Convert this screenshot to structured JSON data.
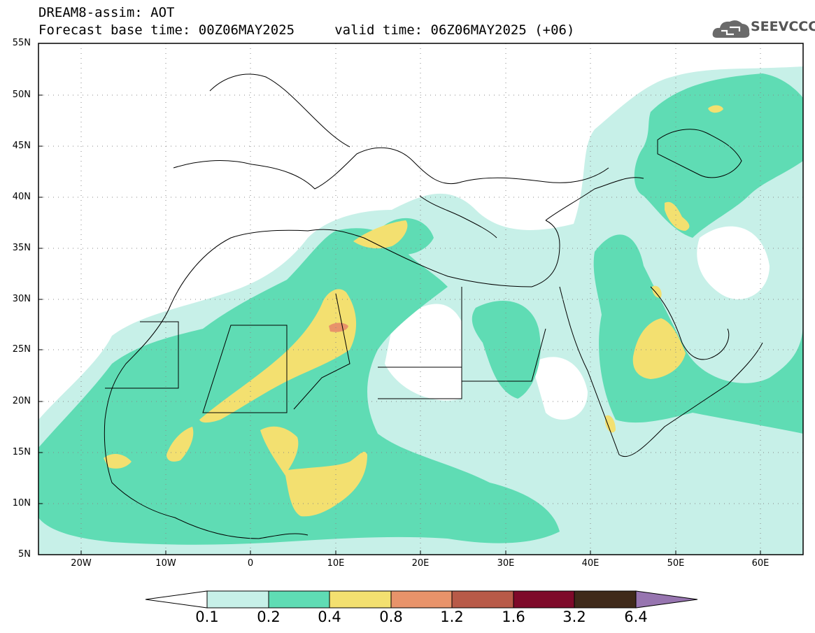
{
  "header": {
    "title_line1": "DREAM8-assim: AOT",
    "title_line2": "Forecast base time: 00Z06MAY2025     valid time: 06Z06MAY2025 (+06)"
  },
  "logo": {
    "text": "SEEVCCC",
    "icon": "cloud-icon"
  },
  "map": {
    "projection": "cylindrical",
    "lon_range": [
      -25,
      65
    ],
    "lat_range": [
      5,
      55
    ],
    "grid": true,
    "lat_labels": [
      "5N",
      "10N",
      "15N",
      "20N",
      "25N",
      "30N",
      "35N",
      "40N",
      "45N",
      "50N",
      "55N"
    ],
    "lon_labels": [
      "20W",
      "10W",
      "0",
      "10E",
      "20E",
      "30E",
      "40E",
      "50E",
      "60E"
    ],
    "variable": "AOT"
  },
  "colorbar": {
    "levels": [
      "0.1",
      "0.2",
      "0.4",
      "0.8",
      "1.2",
      "1.6",
      "3.2",
      "6.4"
    ],
    "colors": [
      "#c7f0e8",
      "#5fdcb4",
      "#f3e070",
      "#e8936a",
      "#b85a48",
      "#7e0a2a",
      "#3f2a1a",
      "#9775b0"
    ],
    "extend": "both"
  }
}
